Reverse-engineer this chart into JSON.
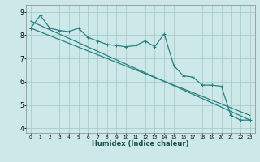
{
  "title": "",
  "xlabel": "Humidex (Indice chaleur)",
  "bg_color": "#cce8e8",
  "grid_color": "#aacccc",
  "line_color": "#2a8080",
  "xlim": [
    -0.5,
    23.5
  ],
  "ylim": [
    3.8,
    9.3
  ],
  "yticks": [
    4,
    5,
    6,
    7,
    8,
    9
  ],
  "xticks": [
    0,
    1,
    2,
    3,
    4,
    5,
    6,
    7,
    8,
    9,
    10,
    11,
    12,
    13,
    14,
    15,
    16,
    17,
    18,
    19,
    20,
    21,
    22,
    23
  ],
  "line1_x": [
    0,
    1,
    2,
    3,
    4,
    5,
    6,
    7,
    8,
    9,
    10,
    11,
    12,
    13,
    14,
    15,
    16,
    17,
    18,
    19,
    20,
    21,
    22,
    23
  ],
  "line1_y": [
    8.3,
    8.85,
    8.3,
    8.2,
    8.15,
    8.3,
    7.9,
    7.75,
    7.6,
    7.55,
    7.5,
    7.55,
    7.75,
    7.5,
    8.05,
    6.7,
    6.25,
    6.2,
    5.85,
    5.85,
    5.8,
    4.55,
    4.35,
    4.35
  ],
  "trend1_x": [
    0,
    23
  ],
  "trend1_y": [
    8.6,
    4.35
  ],
  "trend2_x": [
    0,
    23
  ],
  "trend2_y": [
    8.3,
    4.55
  ]
}
